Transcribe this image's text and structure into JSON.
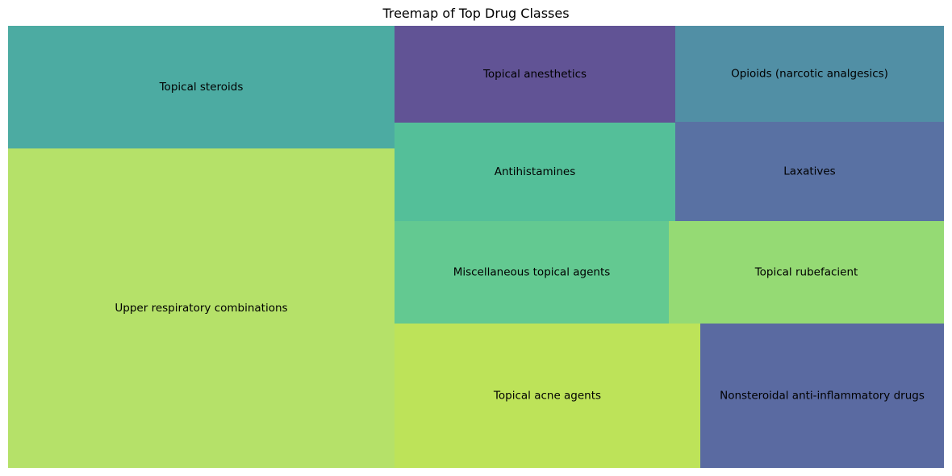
{
  "chart_data": {
    "type": "treemap",
    "title": "Treemap of Top Drug Classes",
    "items": [
      {
        "label": "Upper respiratory combinations",
        "value": 26.2,
        "color": "#a2d944"
      },
      {
        "label": "Topical steroids",
        "value": 7.3,
        "color": "#1f968b"
      },
      {
        "label": "Topical anesthetics",
        "value": 4.2,
        "color": "#39287a"
      },
      {
        "label": "Opioids (narcotic analgesics)",
        "value": 3.5,
        "color": "#26738e"
      },
      {
        "label": "Antihistamines",
        "value": 4.2,
        "color": "#29af7f"
      },
      {
        "label": "Laxatives",
        "value": 3.6,
        "color": "#2f4d8c"
      },
      {
        "label": "Miscellaneous topical agents",
        "value": 4.3,
        "color": "#3cbb75"
      },
      {
        "label": "Topical rubefacient",
        "value": 4.3,
        "color": "#7ad151"
      },
      {
        "label": "Topical acne agents",
        "value": 6.7,
        "color": "#addc30"
      },
      {
        "label": "Nonsteroidal anti-inflammatory drugs",
        "value": 5.4,
        "color": "#31458a"
      }
    ]
  }
}
